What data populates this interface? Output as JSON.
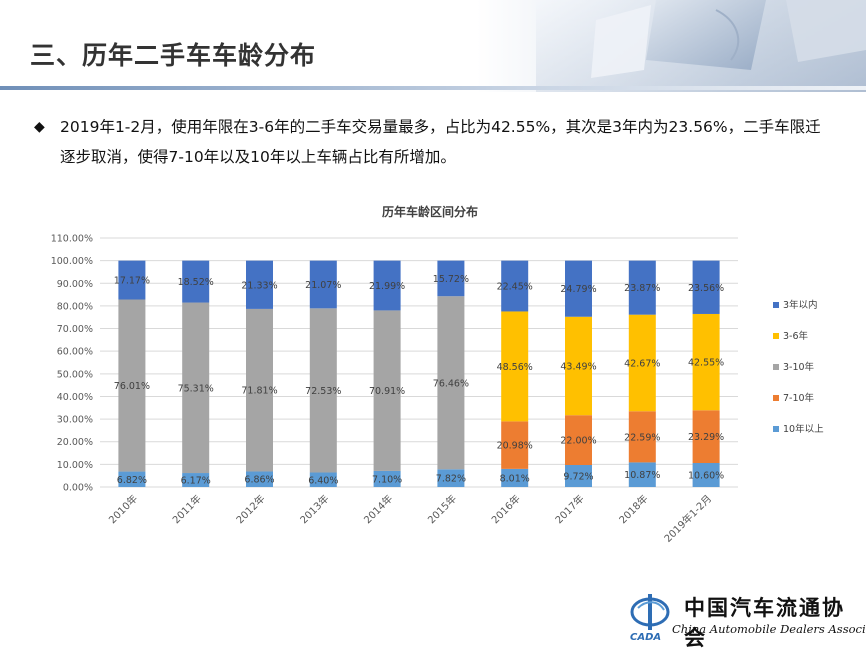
{
  "page": {
    "title": "三、历年二手车车龄分布",
    "bullet_mark": "◆",
    "bullet_text": "2019年1-2月，使用年限在3-6年的二手车交易量最多，占比为42.55%，其次是3年内为23.56%，二手车限迁逐步取消，使得7-10年以及10年以上车辆占比有所增加。"
  },
  "logo": {
    "mark_text": "CADA",
    "name_cn": "中国汽车流通协会",
    "name_en": "China Automobile Dealers Association"
  },
  "chart_data": {
    "type": "bar",
    "stacked": true,
    "title": "历年车龄区间分布",
    "categories": [
      "2010年",
      "2011年",
      "2012年",
      "2013年",
      "2014年",
      "2015年",
      "2016年",
      "2017年",
      "2018年",
      "2019年1-2月"
    ],
    "ylim": [
      0,
      110
    ],
    "yticks": [
      "0.00%",
      "10.00%",
      "20.00%",
      "30.00%",
      "40.00%",
      "50.00%",
      "60.00%",
      "70.00%",
      "80.00%",
      "90.00%",
      "100.00%",
      "110.00%"
    ],
    "grid": true,
    "legend_position": "right",
    "series": [
      {
        "name": "10年以上",
        "color": "#5b9bd5",
        "values": [
          6.82,
          6.17,
          6.86,
          6.4,
          7.1,
          7.82,
          8.01,
          9.72,
          10.87,
          10.6
        ],
        "labels": [
          "6.82%",
          "6.17%",
          "6.86%",
          "6.40%",
          "7.10%",
          "7.82%",
          "8.01%",
          "9.72%",
          "10.87%",
          "10.60%"
        ]
      },
      {
        "name": "7-10年",
        "color": "#ed7d31",
        "values": [
          0,
          0,
          0,
          0,
          0,
          0,
          20.98,
          22.0,
          22.59,
          23.29
        ],
        "labels": [
          "",
          "",
          "",
          "",
          "",
          "",
          "20.98%",
          "22.00%",
          "22.59%",
          "23.29%"
        ]
      },
      {
        "name": "3-10年",
        "color": "#a5a5a5",
        "values": [
          76.01,
          75.31,
          71.81,
          72.53,
          70.91,
          76.46,
          0,
          0,
          0,
          0
        ],
        "labels": [
          "76.01%",
          "75.31%",
          "71.81%",
          "72.53%",
          "70.91%",
          "76.46%",
          "",
          "",
          "",
          ""
        ]
      },
      {
        "name": "3-6年",
        "color": "#ffc000",
        "values": [
          0,
          0,
          0,
          0,
          0,
          0,
          48.56,
          43.49,
          42.67,
          42.55
        ],
        "labels": [
          "",
          "",
          "",
          "",
          "",
          "",
          "48.56%",
          "43.49%",
          "42.67%",
          "42.55%"
        ]
      },
      {
        "name": "3年以内",
        "color": "#4472c4",
        "values": [
          17.17,
          18.52,
          21.33,
          21.07,
          21.99,
          15.72,
          22.45,
          24.79,
          23.87,
          23.56
        ],
        "labels": [
          "17.17%",
          "18.52%",
          "21.33%",
          "21.07%",
          "21.99%",
          "15.72%",
          "22.45%",
          "24.79%",
          "23.87%",
          "23.56%"
        ]
      }
    ],
    "legend_order": [
      "3年以内",
      "3-6年",
      "3-10年",
      "7-10年",
      "10年以上"
    ]
  }
}
